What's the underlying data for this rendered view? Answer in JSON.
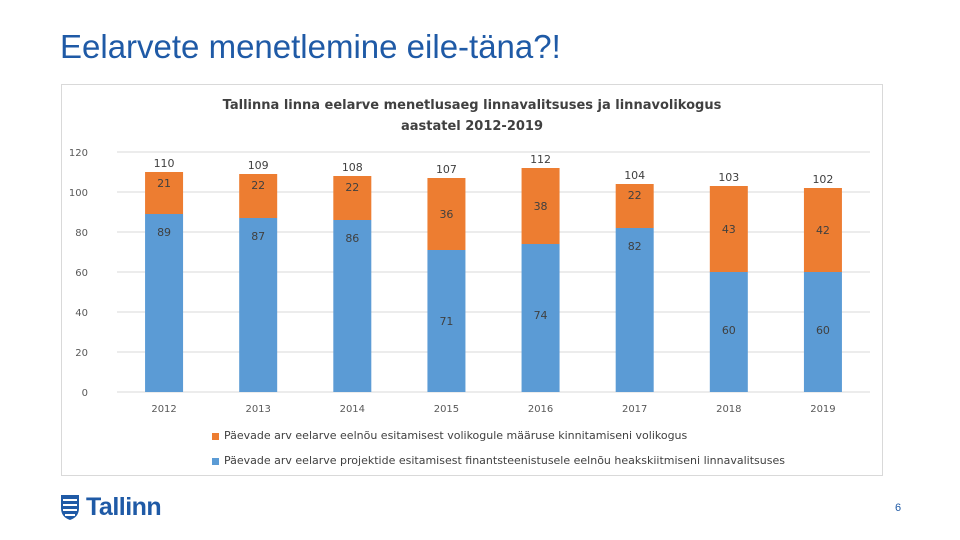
{
  "slide": {
    "title": "Eelarvete menetlemine eile-täna?!",
    "page_number": "6",
    "logo_text": "Tallinn"
  },
  "colors": {
    "title": "#1f5aa6",
    "series_blue": "#5b9bd5",
    "series_orange": "#ed7d31"
  },
  "chart_data": {
    "type": "bar",
    "stacked": true,
    "title": "Tallinna linna eelarve menetlusaeg linnavalitsuses ja linnavolikogus aastatel 2012-2019",
    "title_lines": [
      "Tallinna linna eelarve menetlusaeg linnavalitsuses ja linnavolikogus",
      "aastatel 2012-2019"
    ],
    "categories": [
      "2012",
      "2013",
      "2014",
      "2015",
      "2016",
      "2017",
      "2018",
      "2019"
    ],
    "series": [
      {
        "name": "Päevade arv eelarve projektide esitamisest finantsteenistusele eelnõu heakskiitmiseni linnavalitsuses",
        "color": "#5b9bd5",
        "values": [
          89,
          87,
          86,
          71,
          74,
          82,
          60,
          60
        ]
      },
      {
        "name": "Päevade arv eelarve eelnõu esitamisest volikogule määruse kinnitamiseni volikogus",
        "color": "#ed7d31",
        "values": [
          21,
          22,
          22,
          36,
          38,
          22,
          43,
          42
        ]
      }
    ],
    "totals": [
      110,
      109,
      108,
      107,
      112,
      104,
      103,
      102
    ],
    "ylim": [
      0,
      120
    ],
    "yticks": [
      0,
      20,
      40,
      60,
      80,
      100,
      120
    ],
    "grid": true,
    "xlabel": "",
    "ylabel": "",
    "legend_position": "bottom"
  }
}
